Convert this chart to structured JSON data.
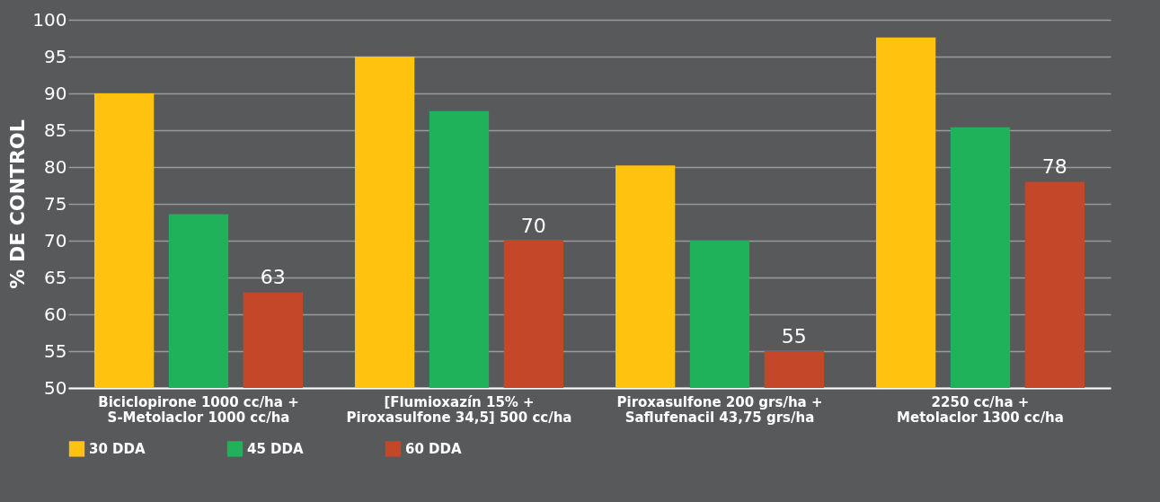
{
  "chart_data": {
    "type": "bar",
    "ylabel": "% DE CONTROL",
    "categories": [
      "Biciclopirone 1000 cc/ha + S-Metolaclor 1000 cc/ha",
      "[Flumioxazín 15% + Piroxasulfone 34,5] 500 cc/ha",
      "Piroxasulfone 200 grs/ha + Saflufenacil 43,75 grs/ha",
      "2250 cc/ha + Metolaclor 1300 cc/ha"
    ],
    "series": [
      {
        "name": "30 DDA",
        "color": "#ffc20e",
        "values": [
          90,
          95,
          80.2,
          97.6
        ]
      },
      {
        "name": "45 DDA",
        "color": "#1fb25a",
        "values": [
          73.6,
          87.6,
          70,
          85.4
        ]
      },
      {
        "name": "60 DDA",
        "color": "#c4472a",
        "values": [
          63,
          70,
          55,
          78
        ],
        "value_labels": [
          "63",
          "70",
          "55",
          "78"
        ]
      }
    ],
    "ylim": [
      50,
      100
    ],
    "yticks": [
      50,
      55,
      60,
      65,
      70,
      75,
      80,
      85,
      90,
      95,
      100
    ],
    "grid": "y",
    "legend": "bottom"
  }
}
